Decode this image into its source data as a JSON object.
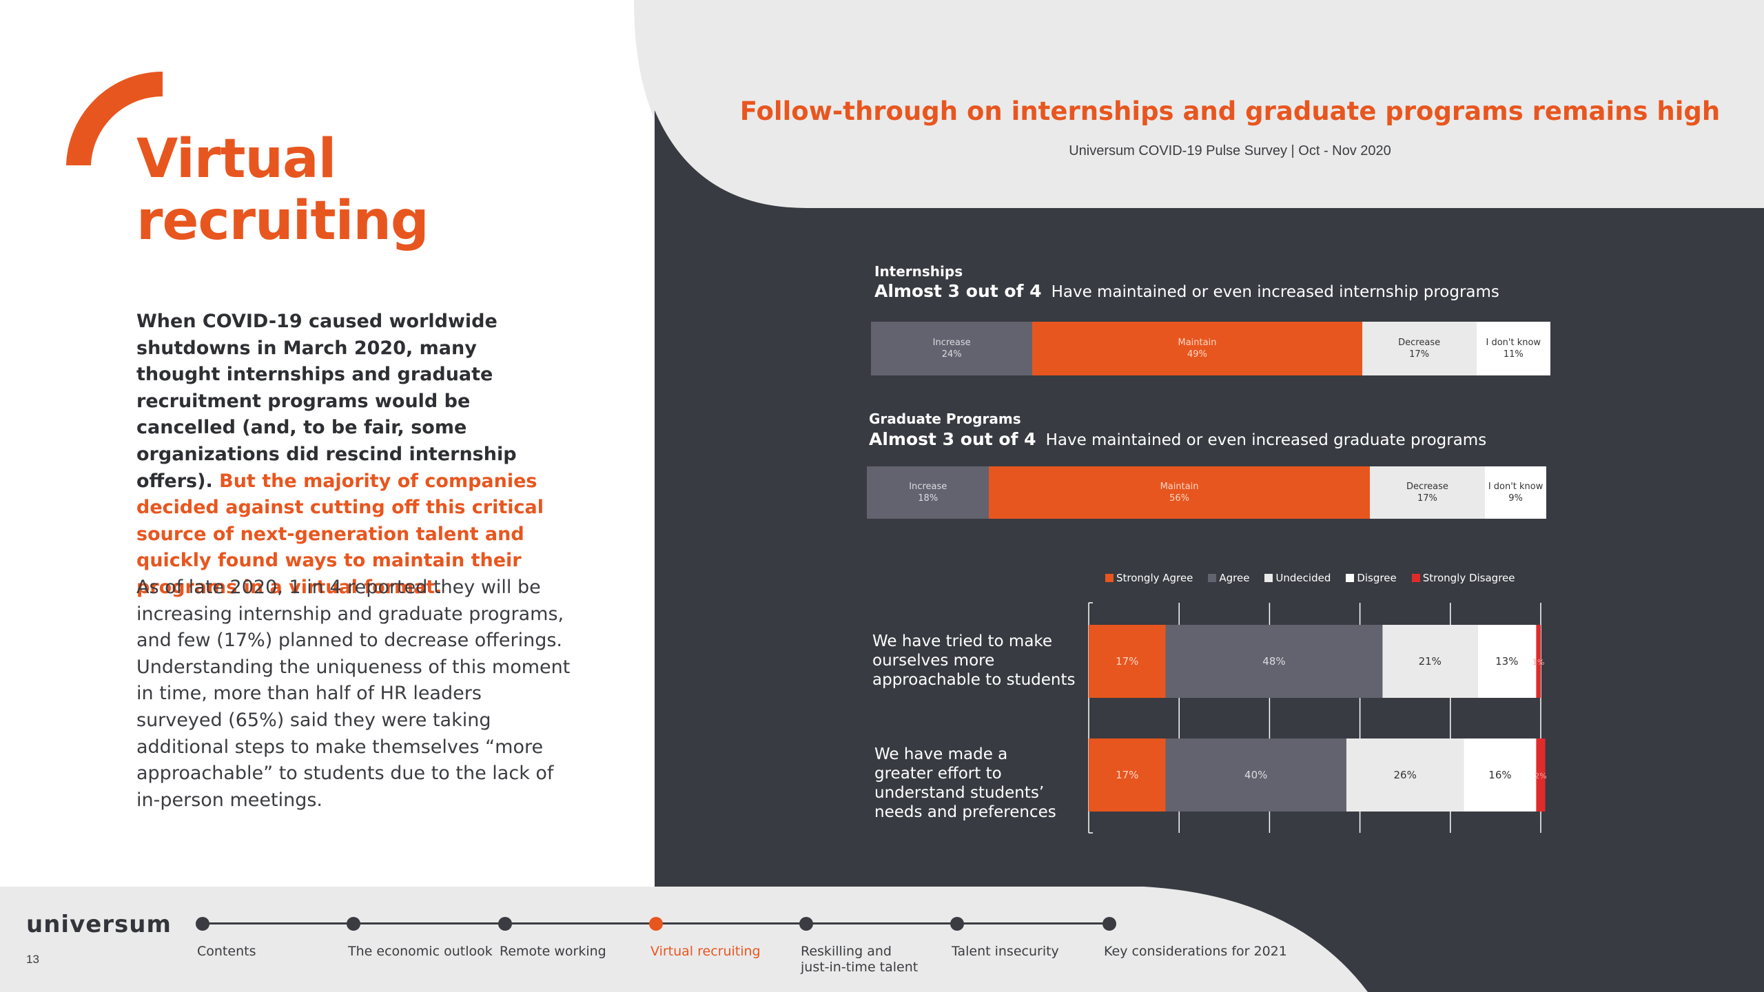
{
  "slide": {
    "title_line1": "Virtual",
    "title_line2": "recruiting",
    "intro_dark": "When COVID-19 caused worldwide shutdowns in March 2020, many thought internships and graduate recruitment programs would be cancelled (and, to be fair, some organizations did rescind internship offers). ",
    "intro_highlight": "But the majority of companies decided against cutting off this critical source of next-generation talent and quickly  found ways to maintain their programs in a virtual format.",
    "body": "As of late 2020, 1 in 4 reported they will be increasing internship and graduate programs, and few (17%) planned to decrease offerings. Understanding the uniqueness of this moment in time, more than half of HR leaders surveyed (65%) said they were taking additional steps to make themselves “more approachable” to students due to the lack of in-person meetings."
  },
  "colors": {
    "accent": "#E8561F",
    "dark_panel": "#383B41",
    "light_gray": "#EAEAEA",
    "bar_gray": "#62636E",
    "strongly_disagree": "#E02B2B"
  },
  "chart_header": {
    "title": "Follow-through on internships and graduate programs remains high",
    "subtitle": "Universum COVID-19 Pulse Survey | Oct - Nov 2020"
  },
  "chart_data": [
    {
      "type": "bar",
      "stacked": true,
      "orientation": "horizontal",
      "label": "Internships",
      "headline_bold": "Almost 3 out of 4",
      "headline_text": "Have maintained or even increased internship programs",
      "segments": [
        {
          "name": "Increase",
          "value": 24,
          "display": "24%",
          "color": "#62636E",
          "text_color": "#dcdce2"
        },
        {
          "name": "Maintain",
          "value": 49,
          "display": "49%",
          "color": "#E8561F",
          "text_color": "#fbd6c6"
        },
        {
          "name": "Decrease",
          "value": 17,
          "display": "17%",
          "color": "#EAEAEA",
          "text_color": "#333333"
        },
        {
          "name": "I don't know",
          "value": 11,
          "display": "11%",
          "color": "#FFFFFF",
          "text_color": "#333333"
        }
      ]
    },
    {
      "type": "bar",
      "stacked": true,
      "orientation": "horizontal",
      "label": "Graduate Programs",
      "headline_bold": "Almost 3 out of 4",
      "headline_text": "Have maintained or even increased graduate programs",
      "segments": [
        {
          "name": "Increase",
          "value": 18,
          "display": "18%",
          "color": "#62636E",
          "text_color": "#dcdce2"
        },
        {
          "name": "Maintain",
          "value": 56,
          "display": "56%",
          "color": "#E8561F",
          "text_color": "#fbd6c6"
        },
        {
          "name": "Decrease",
          "value": 17,
          "display": "17%",
          "color": "#EAEAEA",
          "text_color": "#333333"
        },
        {
          "name": "I don't know",
          "value": 9,
          "display": "9%",
          "color": "#FFFFFF",
          "text_color": "#333333"
        }
      ]
    },
    {
      "type": "bar",
      "stacked": true,
      "orientation": "horizontal",
      "legend_position": "top",
      "grid": true,
      "series": [
        {
          "name": "Strongly Agree",
          "color": "#E8561F",
          "text_color": "#fbd6c6"
        },
        {
          "name": "Agree",
          "color": "#62636E",
          "text_color": "#dcdce2"
        },
        {
          "name": "Undecided",
          "color": "#EAEAEA",
          "text_color": "#333333"
        },
        {
          "name": "Disgree",
          "color": "#FFFFFF",
          "text_color": "#333333"
        },
        {
          "name": "Strongly Disagree",
          "color": "#E02B2B",
          "text_color": "#f5a3a3"
        }
      ],
      "categories": [
        "We have tried to make\nourselves more\napproachable to students",
        "We have made a\ngreater effort to\nunderstand students’\nneeds and  preferences"
      ],
      "values": [
        [
          17,
          48,
          21,
          13,
          1
        ],
        [
          17,
          40,
          26,
          16,
          2
        ]
      ],
      "labels": [
        [
          "17%",
          "48%",
          "21%",
          "13%",
          "1%"
        ],
        [
          "17%",
          "40%",
          "26%",
          "16%",
          "2%"
        ]
      ],
      "xlim": [
        0,
        100
      ]
    }
  ],
  "footer": {
    "logo": "universum",
    "page_number": "13",
    "nav": [
      {
        "label": "Contents",
        "active": false
      },
      {
        "label": "The economic outlook",
        "active": false
      },
      {
        "label": "Remote working",
        "active": false
      },
      {
        "label": "Virtual recruiting",
        "active": true
      },
      {
        "label": "Reskilling and\njust-in-time talent",
        "active": false
      },
      {
        "label": "Talent insecurity",
        "active": false
      },
      {
        "label": "Key considerations for 2021",
        "active": false
      }
    ]
  }
}
